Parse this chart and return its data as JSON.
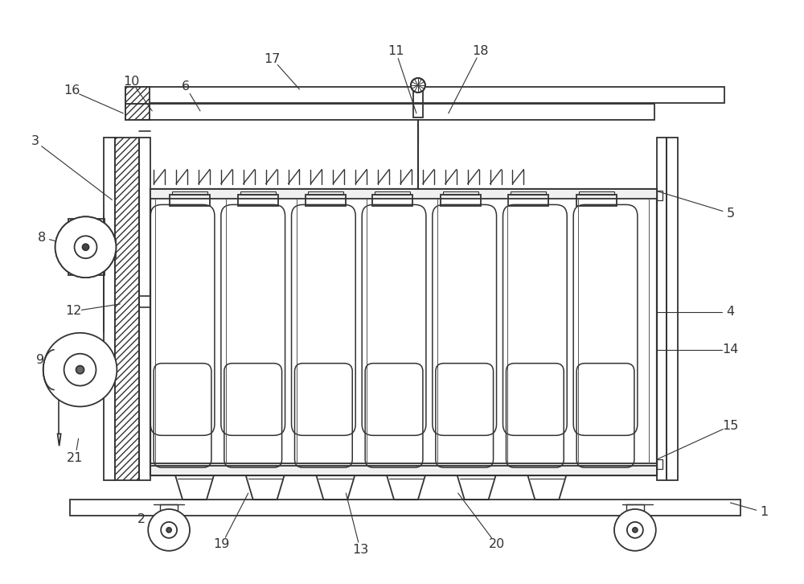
{
  "bg": "#ffffff",
  "lc": "#333333",
  "lw": 1.3,
  "fig_w": 10.0,
  "fig_h": 7.26,
  "dpi": 100,
  "labels": [
    [
      "1",
      952,
      638,
      910,
      626
    ],
    [
      "2",
      175,
      647,
      208,
      658
    ],
    [
      "3",
      42,
      175,
      138,
      248
    ],
    [
      "4",
      910,
      388,
      818,
      388
    ],
    [
      "5",
      910,
      265,
      818,
      237
    ],
    [
      "6",
      230,
      107,
      248,
      137
    ],
    [
      "8",
      50,
      295,
      98,
      307
    ],
    [
      "9",
      48,
      448,
      80,
      460
    ],
    [
      "10",
      162,
      100,
      188,
      137
    ],
    [
      "11",
      492,
      62,
      518,
      140
    ],
    [
      "12",
      90,
      387,
      148,
      378
    ],
    [
      "13",
      448,
      685,
      430,
      614
    ],
    [
      "14",
      910,
      435,
      818,
      435
    ],
    [
      "15",
      910,
      530,
      818,
      572
    ],
    [
      "16",
      88,
      112,
      152,
      140
    ],
    [
      "17",
      338,
      72,
      372,
      110
    ],
    [
      "18",
      598,
      62,
      558,
      140
    ],
    [
      "19",
      275,
      678,
      308,
      614
    ],
    [
      "20",
      618,
      678,
      570,
      614
    ],
    [
      "21",
      92,
      570,
      96,
      546
    ]
  ]
}
